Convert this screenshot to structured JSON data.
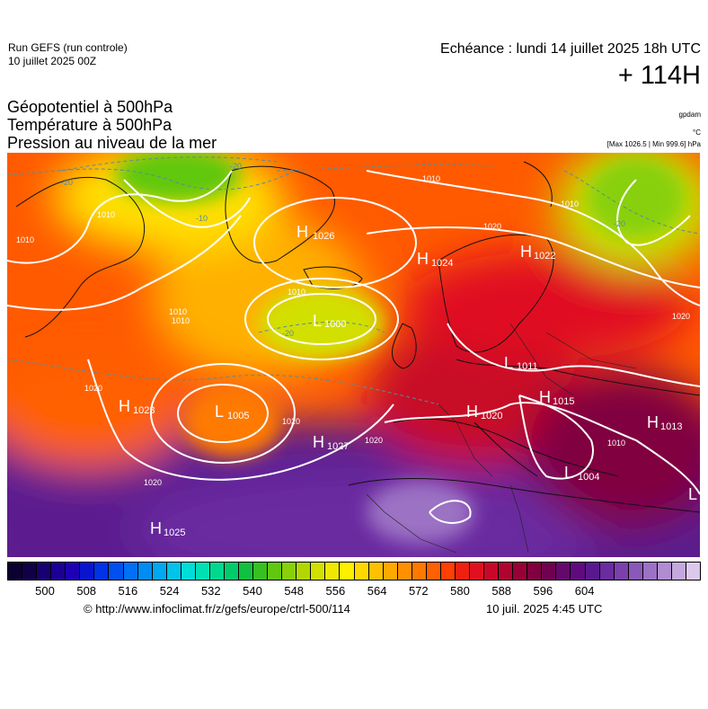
{
  "header": {
    "run_name": "Run GEFS (run controle)",
    "run_date": "10 juillet 2025 00Z",
    "valid_time": "Echéance : lundi 14 juillet 2025 18h UTC",
    "lead_time": "+ 114H"
  },
  "params": [
    "Géopotentiel à 500hPa",
    "Température à 500hPa",
    "Pression au niveau de la mer"
  ],
  "units": {
    "geopotential": "gpdam",
    "temperature": "°C",
    "pressure_range": "[Max 1026.5 | Min 999.6] hPa"
  },
  "map": {
    "pressure_centers": [
      {
        "type": "H",
        "value": "1026"
      },
      {
        "type": "H",
        "value": "1024"
      },
      {
        "type": "H",
        "value": "1022"
      },
      {
        "type": "L",
        "value": "1000"
      },
      {
        "type": "L",
        "value": "1011"
      },
      {
        "type": "H",
        "value": "1023"
      },
      {
        "type": "L",
        "value": "1005"
      },
      {
        "type": "H",
        "value": "1027"
      },
      {
        "type": "H",
        "value": "1020"
      },
      {
        "type": "H",
        "value": "1015"
      },
      {
        "type": "H",
        "value": "1013"
      },
      {
        "type": "L",
        "value": "1004"
      },
      {
        "type": "H",
        "value": "1025"
      },
      {
        "type": "L",
        "value": ""
      }
    ],
    "isobar_labels": [
      "1010",
      "1010",
      "1010",
      "1010",
      "1010",
      "1020",
      "1020",
      "1020",
      "1020",
      "1020",
      "1020",
      "1010",
      "1010",
      "1010"
    ],
    "temp_labels": [
      "-20",
      "-20",
      "-20",
      "-10",
      "-20"
    ]
  },
  "colorbar": {
    "colors": [
      "#0c0030",
      "#0f0048",
      "#180072",
      "#1c0094",
      "#1e00b4",
      "#0a14d0",
      "#0032e6",
      "#0050f0",
      "#0070f5",
      "#008cf5",
      "#00a8f0",
      "#00c4ec",
      "#00dcd8",
      "#00e0b4",
      "#00d890",
      "#00cc6c",
      "#10c040",
      "#38c020",
      "#60c810",
      "#88d008",
      "#b0d800",
      "#d2e000",
      "#f0e800",
      "#fff000",
      "#ffd800",
      "#ffc000",
      "#ffa800",
      "#ff9000",
      "#ff7800",
      "#ff6000",
      "#ff4000",
      "#f02010",
      "#e01020",
      "#c80828",
      "#b00430",
      "#980038",
      "#800040",
      "#700050",
      "#64086c",
      "#600a80",
      "#5a1890",
      "#6a2ca0",
      "#7a40ac",
      "#8a58b8",
      "#9c72c4",
      "#b08cd0",
      "#c4a8dc",
      "#dcc8ec"
    ],
    "ticks": [
      "500",
      "508",
      "516",
      "524",
      "532",
      "540",
      "548",
      "556",
      "564",
      "572",
      "580",
      "588",
      "596",
      "604"
    ]
  },
  "footer": {
    "credit": "© http://www.infoclimat.fr/z/gefs/europe/ctrl-500/114",
    "issued": "10 juil. 2025  4:45 UTC"
  }
}
